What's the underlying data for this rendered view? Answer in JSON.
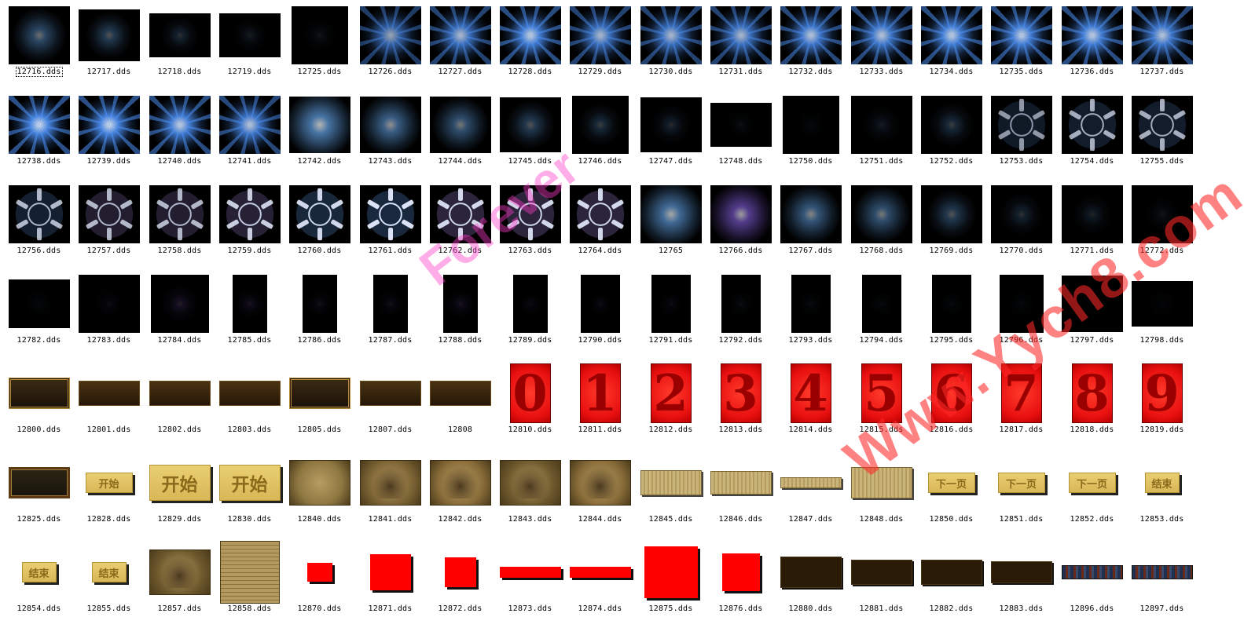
{
  "colors": {
    "blue_glow": "#5aa8ff",
    "violet_glow": "#7a6cff",
    "black": "#000000",
    "red": "#ff0000",
    "digit_bg": "#e81010",
    "digit_fg": "#9a0000",
    "parchment": "#b9a263",
    "gold_button": "#e9cf72",
    "gold_text": "#f2d060",
    "dark_brown": "#2a1a08"
  },
  "watermark": {
    "top": "Forever",
    "bottom": "Www.Yych8.com"
  },
  "rows": [
    [
      {
        "label": "12716.dds",
        "kind": "glow",
        "w": 78,
        "h": 74,
        "s": 0.45,
        "c": "blue"
      },
      {
        "label": "12717.dds",
        "kind": "glow",
        "w": 78,
        "h": 66,
        "s": 0.35,
        "c": "blue"
      },
      {
        "label": "12718.dds",
        "kind": "glow",
        "w": 78,
        "h": 56,
        "s": 0.2,
        "c": "blue"
      },
      {
        "label": "12719.dds",
        "kind": "glow",
        "w": 78,
        "h": 56,
        "s": 0.12,
        "c": "blue"
      },
      {
        "label": "12725.dds",
        "kind": "glow",
        "w": 72,
        "h": 74,
        "s": 0.08,
        "c": "blue"
      },
      {
        "label": "12726.dds",
        "kind": "burst",
        "w": 78,
        "h": 74,
        "s": 0.7,
        "c": "blue"
      },
      {
        "label": "12727.dds",
        "kind": "burst",
        "w": 78,
        "h": 74,
        "s": 0.8,
        "c": "blue"
      },
      {
        "label": "12728.dds",
        "kind": "burst",
        "w": 78,
        "h": 74,
        "s": 0.9,
        "c": "blue"
      },
      {
        "label": "12729.dds",
        "kind": "burst",
        "w": 78,
        "h": 74,
        "s": 0.8,
        "c": "blue"
      },
      {
        "label": "12730.dds",
        "kind": "burst",
        "w": 78,
        "h": 74,
        "s": 0.8,
        "c": "blue"
      },
      {
        "label": "12731.dds",
        "kind": "burst",
        "w": 78,
        "h": 74,
        "s": 0.8,
        "c": "blue"
      },
      {
        "label": "12732.dds",
        "kind": "burst",
        "w": 78,
        "h": 74,
        "s": 0.85,
        "c": "blue"
      },
      {
        "label": "12733.dds",
        "kind": "burst",
        "w": 78,
        "h": 74,
        "s": 0.85,
        "c": "blue"
      },
      {
        "label": "12734.dds",
        "kind": "burst",
        "w": 78,
        "h": 74,
        "s": 0.9,
        "c": "blue"
      },
      {
        "label": "12735.dds",
        "kind": "burst",
        "w": 78,
        "h": 74,
        "s": 0.9,
        "c": "blue"
      },
      {
        "label": "12736.dds",
        "kind": "burst",
        "w": 78,
        "h": 74,
        "s": 0.9,
        "c": "blue"
      },
      {
        "label": "12737.dds",
        "kind": "burst",
        "w": 78,
        "h": 74,
        "s": 0.85,
        "c": "blue"
      }
    ],
    [
      {
        "label": "12738.dds",
        "kind": "burst",
        "w": 78,
        "h": 74,
        "s": 0.95,
        "c": "blue"
      },
      {
        "label": "12739.dds",
        "kind": "burst",
        "w": 78,
        "h": 74,
        "s": 0.95,
        "c": "blue"
      },
      {
        "label": "12740.dds",
        "kind": "burst",
        "w": 78,
        "h": 74,
        "s": 0.9,
        "c": "blue"
      },
      {
        "label": "12741.dds",
        "kind": "burst",
        "w": 78,
        "h": 74,
        "s": 0.85,
        "c": "blue"
      },
      {
        "label": "12742.dds",
        "kind": "glow",
        "w": 78,
        "h": 72,
        "s": 0.75,
        "c": "blue"
      },
      {
        "label": "12743.dds",
        "kind": "glow",
        "w": 78,
        "h": 72,
        "s": 0.6,
        "c": "blue"
      },
      {
        "label": "12744.dds",
        "kind": "glow",
        "w": 78,
        "h": 72,
        "s": 0.5,
        "c": "blue"
      },
      {
        "label": "12745.dds",
        "kind": "glow",
        "w": 78,
        "h": 70,
        "s": 0.35,
        "c": "blue"
      },
      {
        "label": "12746.dds",
        "kind": "glow",
        "w": 72,
        "h": 74,
        "s": 0.25,
        "c": "blue"
      },
      {
        "label": "12747.dds",
        "kind": "glow",
        "w": 78,
        "h": 70,
        "s": 0.18,
        "c": "blue"
      },
      {
        "label": "12748.dds",
        "kind": "glow",
        "w": 78,
        "h": 56,
        "s": 0.06,
        "c": "blue"
      },
      {
        "label": "12750.dds",
        "kind": "glow",
        "w": 72,
        "h": 74,
        "s": 0.04,
        "c": "blue"
      },
      {
        "label": "12751.dds",
        "kind": "glow",
        "w": 78,
        "h": 74,
        "s": 0.12,
        "c": "blue"
      },
      {
        "label": "12752.dds",
        "kind": "glow",
        "w": 78,
        "h": 74,
        "s": 0.25,
        "c": "blue"
      },
      {
        "label": "12753.dds",
        "kind": "ring",
        "w": 78,
        "h": 74,
        "s": 0.6,
        "c": "blue"
      },
      {
        "label": "12754.dds",
        "kind": "ring",
        "w": 78,
        "h": 74,
        "s": 0.7,
        "c": "blue"
      },
      {
        "label": "12755.dds",
        "kind": "ring",
        "w": 78,
        "h": 74,
        "s": 0.7,
        "c": "blue"
      }
    ],
    [
      {
        "label": "12756.dds",
        "kind": "ring",
        "w": 78,
        "h": 74,
        "s": 0.75,
        "c": "blue"
      },
      {
        "label": "12757.dds",
        "kind": "ring",
        "w": 78,
        "h": 74,
        "s": 0.75,
        "c": "violet"
      },
      {
        "label": "12758.dds",
        "kind": "ring",
        "w": 78,
        "h": 74,
        "s": 0.75,
        "c": "violet"
      },
      {
        "label": "12759.dds",
        "kind": "ring",
        "w": 78,
        "h": 74,
        "s": 0.85,
        "c": "violet"
      },
      {
        "label": "12760.dds",
        "kind": "ring",
        "w": 78,
        "h": 74,
        "s": 0.9,
        "c": "blue"
      },
      {
        "label": "12761.dds",
        "kind": "ring",
        "w": 78,
        "h": 74,
        "s": 0.95,
        "c": "blue"
      },
      {
        "label": "12762.dds",
        "kind": "ring",
        "w": 78,
        "h": 74,
        "s": 0.9,
        "c": "violet"
      },
      {
        "label": "12763.dds",
        "kind": "ring",
        "w": 78,
        "h": 74,
        "s": 0.9,
        "c": "violet"
      },
      {
        "label": "12764.dds",
        "kind": "ring",
        "w": 78,
        "h": 74,
        "s": 0.9,
        "c": "violet"
      },
      {
        "label": "12765",
        "kind": "glow",
        "w": 78,
        "h": 74,
        "s": 0.7,
        "c": "blue"
      },
      {
        "label": "12766.dds",
        "kind": "glow",
        "w": 78,
        "h": 74,
        "s": 0.65,
        "c": "violet"
      },
      {
        "label": "12767.dds",
        "kind": "glow",
        "w": 78,
        "h": 74,
        "s": 0.55,
        "c": "blue"
      },
      {
        "label": "12768.dds",
        "kind": "glow",
        "w": 78,
        "h": 74,
        "s": 0.5,
        "c": "blue"
      },
      {
        "label": "12769.dds",
        "kind": "glow",
        "w": 78,
        "h": 74,
        "s": 0.35,
        "c": "blue"
      },
      {
        "label": "12770.dds",
        "kind": "glow",
        "w": 78,
        "h": 74,
        "s": 0.2,
        "c": "blue"
      },
      {
        "label": "12771.dds",
        "kind": "glow",
        "w": 78,
        "h": 74,
        "s": 0.15,
        "c": "blue"
      },
      {
        "label": "12772.dds",
        "kind": "glow",
        "w": 78,
        "h": 74,
        "s": 0.08,
        "c": "blue"
      }
    ],
    [
      {
        "label": "12782.dds",
        "kind": "glow",
        "w": 78,
        "h": 62,
        "s": 0.03,
        "c": "blue"
      },
      {
        "label": "12783.dds",
        "kind": "glow",
        "w": 78,
        "h": 74,
        "s": 0.06,
        "c": "violet"
      },
      {
        "label": "12784.dds",
        "kind": "glow",
        "w": 74,
        "h": 74,
        "s": 0.14,
        "c": "violet"
      },
      {
        "label": "12785.dds",
        "kind": "glow",
        "w": 44,
        "h": 74,
        "s": 0.1,
        "c": "violet"
      },
      {
        "label": "12786.dds",
        "kind": "glow",
        "w": 44,
        "h": 74,
        "s": 0.08,
        "c": "violet"
      },
      {
        "label": "12787.dds",
        "kind": "glow",
        "w": 44,
        "h": 74,
        "s": 0.08,
        "c": "violet"
      },
      {
        "label": "12788.dds",
        "kind": "glow",
        "w": 44,
        "h": 74,
        "s": 0.1,
        "c": "violet"
      },
      {
        "label": "12789.dds",
        "kind": "glow",
        "w": 44,
        "h": 74,
        "s": 0.06,
        "c": "violet"
      },
      {
        "label": "12790.dds",
        "kind": "glow",
        "w": 50,
        "h": 74,
        "s": 0.06,
        "c": "violet"
      },
      {
        "label": "12791.dds",
        "kind": "glow",
        "w": 50,
        "h": 74,
        "s": 0.06,
        "c": "violet"
      },
      {
        "label": "12792.dds",
        "kind": "glow",
        "w": 50,
        "h": 74,
        "s": 0.05,
        "c": "blue"
      },
      {
        "label": "12793.dds",
        "kind": "glow",
        "w": 50,
        "h": 74,
        "s": 0.05,
        "c": "blue"
      },
      {
        "label": "12794.dds",
        "kind": "glow",
        "w": 50,
        "h": 74,
        "s": 0.04,
        "c": "blue"
      },
      {
        "label": "12795.dds",
        "kind": "glow",
        "w": 50,
        "h": 74,
        "s": 0.04,
        "c": "blue"
      },
      {
        "label": "12796.dds",
        "kind": "glow",
        "w": 56,
        "h": 74,
        "s": 0.03,
        "c": "blue"
      },
      {
        "label": "12797.dds",
        "kind": "glow",
        "w": 78,
        "h": 72,
        "s": 0.02,
        "c": "blue"
      },
      {
        "label": "12798.dds",
        "kind": "glow",
        "w": 78,
        "h": 58,
        "s": 0.02,
        "c": "blue"
      }
    ],
    [
      {
        "label": "12800.dds",
        "kind": "plaque",
        "w": 78,
        "h": 40,
        "style": "dark"
      },
      {
        "label": "12801.dds",
        "kind": "plaque",
        "w": 78,
        "h": 32,
        "style": "brown"
      },
      {
        "label": "12802.dds",
        "kind": "plaque",
        "w": 78,
        "h": 32,
        "style": "brown"
      },
      {
        "label": "12803.dds",
        "kind": "plaque",
        "w": 78,
        "h": 32,
        "style": "brown"
      },
      {
        "label": "12805.dds",
        "kind": "plaque",
        "w": 78,
        "h": 40,
        "style": "dark"
      },
      {
        "label": "12807.dds",
        "kind": "plaque",
        "w": 78,
        "h": 32,
        "style": "brown"
      },
      {
        "label": "12808",
        "kind": "plaque",
        "w": 78,
        "h": 32,
        "style": "brown"
      },
      {
        "label": "12810.dds",
        "kind": "digit",
        "w": 52,
        "h": 76,
        "digit": "0"
      },
      {
        "label": "12811.dds",
        "kind": "digit",
        "w": 52,
        "h": 76,
        "digit": "1"
      },
      {
        "label": "12812.dds",
        "kind": "digit",
        "w": 52,
        "h": 76,
        "digit": "2"
      },
      {
        "label": "12813.dds",
        "kind": "digit",
        "w": 52,
        "h": 76,
        "digit": "3"
      },
      {
        "label": "12814.dds",
        "kind": "digit",
        "w": 52,
        "h": 76,
        "digit": "4"
      },
      {
        "label": "12815.dds",
        "kind": "digit",
        "w": 52,
        "h": 76,
        "digit": "5"
      },
      {
        "label": "12816.dds",
        "kind": "digit",
        "w": 52,
        "h": 76,
        "digit": "6"
      },
      {
        "label": "12817.dds",
        "kind": "digit",
        "w": 52,
        "h": 76,
        "digit": "7"
      },
      {
        "label": "12818.dds",
        "kind": "digit",
        "w": 52,
        "h": 76,
        "digit": "8"
      },
      {
        "label": "12819.dds",
        "kind": "digit",
        "w": 52,
        "h": 76,
        "digit": "9"
      }
    ],
    [
      {
        "label": "12825.dds",
        "kind": "frame",
        "w": 78,
        "h": 40
      },
      {
        "label": "12828.dds",
        "kind": "button",
        "w": 60,
        "h": 26,
        "text": "开始"
      },
      {
        "label": "12829.dds",
        "kind": "button",
        "w": 78,
        "h": 46,
        "text": "开始"
      },
      {
        "label": "12830.dds",
        "kind": "button",
        "w": 78,
        "h": 46,
        "text": "开始"
      },
      {
        "label": "12840.dds",
        "kind": "parchment",
        "w": 78,
        "h": 58,
        "variant": 0
      },
      {
        "label": "12841.dds",
        "kind": "parchment",
        "w": 78,
        "h": 58,
        "variant": 1
      },
      {
        "label": "12842.dds",
        "kind": "parchment",
        "w": 78,
        "h": 58,
        "variant": 2
      },
      {
        "label": "12843.dds",
        "kind": "parchment",
        "w": 78,
        "h": 58,
        "variant": 3
      },
      {
        "label": "12844.dds",
        "kind": "parchment",
        "w": 78,
        "h": 58,
        "variant": 2
      },
      {
        "label": "12845.dds",
        "kind": "scroll",
        "w": 78,
        "h": 32
      },
      {
        "label": "12846.dds",
        "kind": "scroll",
        "w": 78,
        "h": 30
      },
      {
        "label": "12847.dds",
        "kind": "scroll",
        "w": 78,
        "h": 14
      },
      {
        "label": "12848.dds",
        "kind": "scroll",
        "w": 78,
        "h": 40
      },
      {
        "label": "12850.dds",
        "kind": "button",
        "w": 60,
        "h": 26,
        "text": "下一页"
      },
      {
        "label": "12851.dds",
        "kind": "button",
        "w": 60,
        "h": 26,
        "text": "下一页"
      },
      {
        "label": "12852.dds",
        "kind": "button",
        "w": 60,
        "h": 26,
        "text": "下一页"
      },
      {
        "label": "12853.dds",
        "kind": "button",
        "w": 44,
        "h": 26,
        "text": "结束"
      }
    ],
    [
      {
        "label": "12854.dds",
        "kind": "button",
        "w": 44,
        "h": 26,
        "text": "结束"
      },
      {
        "label": "12855.dds",
        "kind": "button",
        "w": 44,
        "h": 26,
        "text": "结束"
      },
      {
        "label": "12857.dds",
        "kind": "parchment",
        "w": 78,
        "h": 58,
        "variant": 3
      },
      {
        "label": "12858.dds",
        "kind": "textpage",
        "w": 76,
        "h": 80
      },
      {
        "label": "12870.dds",
        "kind": "redrect",
        "w": 32,
        "h": 24
      },
      {
        "label": "12871.dds",
        "kind": "redrect",
        "w": 52,
        "h": 46
      },
      {
        "label": "12872.dds",
        "kind": "redrect",
        "w": 40,
        "h": 38
      },
      {
        "label": "12873.dds",
        "kind": "redrect",
        "w": 78,
        "h": 14
      },
      {
        "label": "12874.dds",
        "kind": "redrect",
        "w": 78,
        "h": 14
      },
      {
        "label": "12875.dds",
        "kind": "redrect",
        "w": 68,
        "h": 66
      },
      {
        "label": "12876.dds",
        "kind": "redrect",
        "w": 48,
        "h": 48
      },
      {
        "label": "12880.dds",
        "kind": "bar",
        "w": 78,
        "h": 40
      },
      {
        "label": "12881.dds",
        "kind": "bar",
        "w": 78,
        "h": 32
      },
      {
        "label": "12882.dds",
        "kind": "bar",
        "w": 78,
        "h": 32
      },
      {
        "label": "12883.dds",
        "kind": "bar",
        "w": 78,
        "h": 28
      },
      {
        "label": "12896.dds",
        "kind": "strip",
        "w": 78,
        "h": 18
      },
      {
        "label": "12897.dds",
        "kind": "strip",
        "w": 78,
        "h": 18
      }
    ]
  ]
}
